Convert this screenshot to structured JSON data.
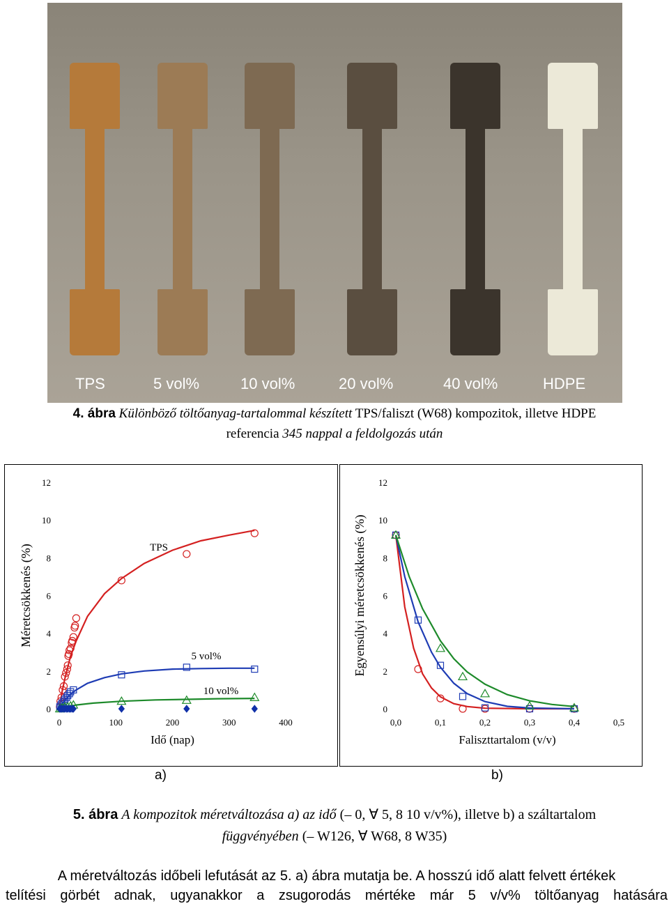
{
  "photo": {
    "labels": [
      "TPS",
      "5 vol%",
      "10 vol%",
      "20 vol%",
      "40 vol%",
      "HDPE"
    ],
    "colors": [
      "#b57a3a",
      "#9c7b55",
      "#7e6a52",
      "#5a4e40",
      "#3b342c",
      "#ece9d8"
    ]
  },
  "figure4": {
    "number": "4. ábra",
    "text": "Különböző töltőanyag-tartalommal készített",
    "text2": "TPS/faliszt (W68) kompozitok, illetve HDPE",
    "text3": "referencia",
    "text4": "345 nappal a feldolgozás után"
  },
  "chart_data": [
    {
      "type": "scatter",
      "panel": "a)",
      "xlabel": "Idő (nap)",
      "ylabel": "Méretcsökkenés (%)",
      "xlim": [
        0,
        400
      ],
      "ylim": [
        0,
        12
      ],
      "xticks": [
        "0",
        "100",
        "200",
        "300",
        "400"
      ],
      "yticks": [
        "0",
        "2",
        "4",
        "6",
        "8",
        "10",
        "12"
      ],
      "annotations": [
        "TPS",
        "5 vol%",
        "10 vol%"
      ],
      "series": [
        {
          "name": "TPS",
          "color": "#d42020",
          "marker": "circle",
          "x": [
            1,
            2,
            4,
            6,
            8,
            10,
            12,
            14,
            15,
            16,
            17,
            18,
            20,
            22,
            23,
            25,
            27,
            28,
            30,
            110,
            225,
            345
          ],
          "y": [
            0.1,
            0.4,
            0.6,
            1.0,
            1.2,
            1.7,
            1.9,
            2.1,
            2.3,
            2.8,
            2.9,
            3.1,
            3.2,
            3.5,
            3.6,
            3.8,
            4.3,
            4.4,
            4.8,
            6.8,
            8.2,
            9.3
          ],
          "fit_x": [
            0,
            5,
            10,
            20,
            30,
            50,
            80,
            110,
            150,
            200,
            250,
            300,
            345
          ],
          "fit_y": [
            0,
            0.9,
            1.6,
            2.8,
            3.6,
            4.9,
            6.1,
            6.9,
            7.7,
            8.4,
            8.9,
            9.2,
            9.45
          ]
        },
        {
          "name": "5 vol%",
          "color": "#1e3cb4",
          "marker": "square",
          "x": [
            1,
            3,
            5,
            8,
            10,
            13,
            15,
            18,
            20,
            25,
            110,
            225,
            345
          ],
          "y": [
            0.1,
            0.2,
            0.3,
            0.4,
            0.5,
            0.6,
            0.7,
            0.8,
            0.9,
            1.0,
            1.8,
            2.2,
            2.1
          ],
          "fit_x": [
            0,
            5,
            10,
            20,
            30,
            50,
            80,
            110,
            150,
            200,
            250,
            300,
            345
          ],
          "fit_y": [
            0,
            0.25,
            0.45,
            0.78,
            1.0,
            1.35,
            1.65,
            1.85,
            2.0,
            2.1,
            2.13,
            2.15,
            2.15
          ]
        },
        {
          "name": "10 vol%",
          "color": "#1d8a2a",
          "marker": "triangle",
          "x": [
            1,
            5,
            10,
            15,
            20,
            25,
            110,
            225,
            345
          ],
          "y": [
            0.0,
            0.05,
            0.1,
            0.1,
            0.15,
            0.2,
            0.4,
            0.45,
            0.6
          ],
          "fit_x": [
            0,
            10,
            30,
            60,
            110,
            170,
            225,
            280,
            345
          ],
          "fit_y": [
            0,
            0.08,
            0.2,
            0.3,
            0.4,
            0.47,
            0.5,
            0.53,
            0.55
          ]
        },
        {
          "name": "HDPE",
          "color": "#1030a8",
          "marker": "diamond",
          "x": [
            1,
            3,
            5,
            8,
            10,
            13,
            15,
            18,
            20,
            23,
            25,
            110,
            225,
            345
          ],
          "y": [
            0,
            0,
            0,
            0,
            0,
            0,
            0,
            0,
            0,
            0,
            0,
            0,
            0,
            0
          ]
        }
      ]
    },
    {
      "type": "scatter",
      "panel": "b)",
      "xlabel": "Faliszttartalom (v/v)",
      "ylabel": "Egyensúlyi méretcsökkenés (%)",
      "xlim": [
        0,
        0.5
      ],
      "ylim": [
        0,
        12
      ],
      "xticks": [
        "0,0",
        "0,1",
        "0,2",
        "0,3",
        "0,4",
        "0,5"
      ],
      "yticks": [
        "0",
        "2",
        "4",
        "6",
        "8",
        "10",
        "12"
      ],
      "series": [
        {
          "name": "W126",
          "color": "#d42020",
          "marker": "circle",
          "x": [
            0,
            0.05,
            0.1,
            0.15,
            0.2,
            0.3,
            0.4
          ],
          "y": [
            9.2,
            2.1,
            0.55,
            0.0,
            0.0,
            0.0,
            0.0
          ],
          "fit_x": [
            0,
            0.02,
            0.04,
            0.06,
            0.08,
            0.1,
            0.13,
            0.16,
            0.2,
            0.3,
            0.4
          ],
          "fit_y": [
            9.2,
            5.4,
            3.2,
            1.85,
            1.1,
            0.63,
            0.27,
            0.12,
            0.03,
            0.0,
            0.0
          ]
        },
        {
          "name": "W68",
          "color": "#1e3cb4",
          "marker": "square",
          "x": [
            0,
            0.05,
            0.1,
            0.15,
            0.2,
            0.3,
            0.4
          ],
          "y": [
            9.2,
            4.7,
            2.3,
            0.65,
            0.05,
            0.0,
            0.0
          ],
          "fit_x": [
            0,
            0.02,
            0.05,
            0.08,
            0.1,
            0.13,
            0.16,
            0.2,
            0.25,
            0.3,
            0.4
          ],
          "fit_y": [
            9.2,
            7.0,
            4.6,
            3.0,
            2.2,
            1.35,
            0.8,
            0.38,
            0.13,
            0.04,
            0.0
          ]
        },
        {
          "name": "W35",
          "color": "#1d8a2a",
          "marker": "triangle",
          "x": [
            0,
            0.1,
            0.15,
            0.2,
            0.3,
            0.4
          ],
          "y": [
            9.2,
            3.2,
            1.7,
            0.8,
            0.15,
            0.05
          ],
          "fit_x": [
            0,
            0.03,
            0.06,
            0.1,
            0.13,
            0.16,
            0.2,
            0.25,
            0.3,
            0.35,
            0.4
          ],
          "fit_y": [
            9.2,
            7.0,
            5.3,
            3.6,
            2.65,
            1.95,
            1.3,
            0.75,
            0.42,
            0.23,
            0.12
          ]
        }
      ]
    }
  ],
  "figure5": {
    "number": "5. ábra",
    "line1_italic": "A kompozitok méretváltozása a) az idő",
    "line1_mid": "(– 0, ∀ 5, 8 10 v/v%), illetve b) a száltartalom",
    "line2_italic": "függvényében",
    "line2_rest": "(– W126, ∀ W68, 8 W35)"
  },
  "body_text": {
    "line1": "A méretváltozás időbeli lefutását az 5. a) ábra mutatja be. A hosszú idő alatt felvett értékek",
    "line2": "telítési görbét adnak, ugyanakkor a zsugorodás mértéke már 5 v/v% töltőanyag hatására"
  }
}
